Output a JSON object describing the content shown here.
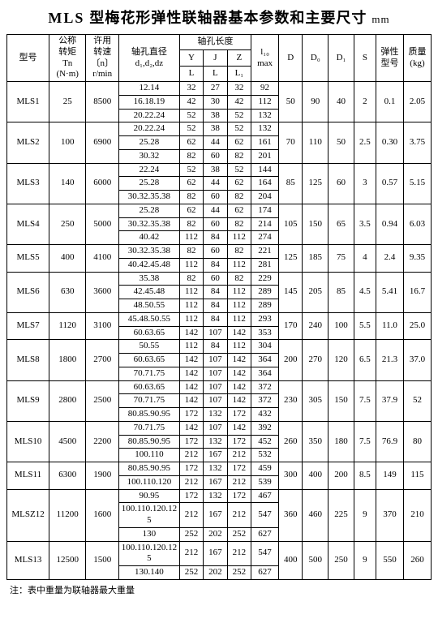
{
  "title": {
    "eng": "MLS",
    "cn": "型梅花形弹性联轴器基本参数和主要尺寸",
    "unit": "mm"
  },
  "headers": {
    "model": "型号",
    "tn": "公称\n转矩\nTn\n(N·m)",
    "rpm": "许用\n转速\n〔n〕\nr/min",
    "d": "轴孔直径\nd₁,d₂,dz",
    "axialLen": "轴孔长度",
    "Y": "Y",
    "J": "J",
    "Z": "Z",
    "L": "L",
    "L1": "L₁",
    "l10": "l₁₀\nmax",
    "D": "D",
    "Do": "D₀",
    "D1": "D₁",
    "S": "S",
    "elastic": "弹性\n型号",
    "kg": "质量\n(kg)"
  },
  "footnote": "注：表中重量为联轴器最大重量",
  "groups": [
    {
      "model": "MLS1",
      "tn": "25",
      "rpm": "8500",
      "D": "50",
      "Do": "90",
      "D1": "40",
      "S": "2",
      "el": "0.1",
      "kg": "2.05",
      "rows": [
        {
          "d": "12.14",
          "Y": "32",
          "J": "27",
          "Z": "32",
          "l10": "92"
        },
        {
          "d": "16.18.19",
          "Y": "42",
          "J": "30",
          "Z": "42",
          "l10": "112"
        },
        {
          "d": "20.22.24",
          "Y": "52",
          "J": "38",
          "Z": "52",
          "l10": "132"
        }
      ]
    },
    {
      "model": "MLS2",
      "tn": "100",
      "rpm": "6900",
      "D": "70",
      "Do": "110",
      "D1": "50",
      "S": "2.5",
      "el": "0.30",
      "kg": "3.75",
      "rows": [
        {
          "d": "20.22.24",
          "Y": "52",
          "J": "38",
          "Z": "52",
          "l10": "132"
        },
        {
          "d": "25.28",
          "Y": "62",
          "J": "44",
          "Z": "62",
          "l10": "161"
        },
        {
          "d": "30.32",
          "Y": "82",
          "J": "60",
          "Z": "82",
          "l10": "201"
        }
      ]
    },
    {
      "model": "MLS3",
      "tn": "140",
      "rpm": "6000",
      "D": "85",
      "Do": "125",
      "D1": "60",
      "S": "3",
      "el": "0.57",
      "kg": "5.15",
      "rows": [
        {
          "d": "22.24",
          "Y": "52",
          "J": "38",
          "Z": "52",
          "l10": "144"
        },
        {
          "d": "25.28",
          "Y": "62",
          "J": "44",
          "Z": "62",
          "l10": "164"
        },
        {
          "d": "30.32.35.38",
          "Y": "82",
          "J": "60",
          "Z": "82",
          "l10": "204"
        }
      ]
    },
    {
      "model": "MLS4",
      "tn": "250",
      "rpm": "5000",
      "D": "105",
      "Do": "150",
      "D1": "65",
      "S": "3.5",
      "el": "0.94",
      "kg": "6.03",
      "rows": [
        {
          "d": "25.28",
          "Y": "62",
          "J": "44",
          "Z": "62",
          "l10": "174"
        },
        {
          "d": "30.32.35.38",
          "Y": "82",
          "J": "60",
          "Z": "82",
          "l10": "214"
        },
        {
          "d": "40.42",
          "Y": "112",
          "J": "84",
          "Z": "112",
          "l10": "274"
        }
      ]
    },
    {
      "model": "MLS5",
      "tn": "400",
      "rpm": "4100",
      "D": "125",
      "Do": "185",
      "D1": "75",
      "S": "4",
      "el": "2.4",
      "kg": "9.35",
      "rows": [
        {
          "d": "30.32.35.38",
          "Y": "82",
          "J": "60",
          "Z": "82",
          "l10": "221"
        },
        {
          "d": "40.42.45.48",
          "Y": "112",
          "J": "84",
          "Z": "112",
          "l10": "281"
        }
      ]
    },
    {
      "model": "MLS6",
      "tn": "630",
      "rpm": "3600",
      "D": "145",
      "Do": "205",
      "D1": "85",
      "S": "4.5",
      "el": "5.41",
      "kg": "16.7",
      "rows": [
        {
          "d": "35.38",
          "Y": "82",
          "J": "60",
          "Z": "82",
          "l10": "229"
        },
        {
          "d": "42.45.48",
          "Y": "112",
          "J": "84",
          "Z": "112",
          "l10": "289"
        },
        {
          "d": "48.50.55",
          "Y": "112",
          "J": "84",
          "Z": "112",
          "l10": "289"
        }
      ]
    },
    {
      "model": "MLS7",
      "tn": "1120",
      "rpm": "3100",
      "D": "170",
      "Do": "240",
      "D1": "100",
      "S": "5.5",
      "el": "11.0",
      "kg": "25.0",
      "rows": [
        {
          "d": "45.48.50.55",
          "Y": "112",
          "J": "84",
          "Z": "112",
          "l10": "293"
        },
        {
          "d": "60.63.65",
          "Y": "142",
          "J": "107",
          "Z": "142",
          "l10": "353"
        }
      ]
    },
    {
      "model": "MLS8",
      "tn": "1800",
      "rpm": "2700",
      "D": "200",
      "Do": "270",
      "D1": "120",
      "S": "6.5",
      "el": "21.3",
      "kg": "37.0",
      "rows": [
        {
          "d": "50.55",
          "Y": "112",
          "J": "84",
          "Z": "112",
          "l10": "304"
        },
        {
          "d": "60.63.65",
          "Y": "142",
          "J": "107",
          "Z": "142",
          "l10": "364"
        },
        {
          "d": "70.71.75",
          "Y": "142",
          "J": "107",
          "Z": "142",
          "l10": "364"
        }
      ]
    },
    {
      "model": "MLS9",
      "tn": "2800",
      "rpm": "2500",
      "D": "230",
      "Do": "305",
      "D1": "150",
      "S": "7.5",
      "el": "37.9",
      "kg": "52",
      "rows": [
        {
          "d": "60.63.65",
          "Y": "142",
          "J": "107",
          "Z": "142",
          "l10": "372"
        },
        {
          "d": "70.71.75",
          "Y": "142",
          "J": "107",
          "Z": "142",
          "l10": "372"
        },
        {
          "d": "80.85.90.95",
          "Y": "172",
          "J": "132",
          "Z": "172",
          "l10": "432"
        }
      ]
    },
    {
      "model": "MLS10",
      "tn": "4500",
      "rpm": "2200",
      "D": "260",
      "Do": "350",
      "D1": "180",
      "S": "7.5",
      "el": "76.9",
      "kg": "80",
      "rows": [
        {
          "d": "70.71.75",
          "Y": "142",
          "J": "107",
          "Z": "142",
          "l10": "392"
        },
        {
          "d": "80.85.90.95",
          "Y": "172",
          "J": "132",
          "Z": "172",
          "l10": "452"
        },
        {
          "d": "100.110",
          "Y": "212",
          "J": "167",
          "Z": "212",
          "l10": "532"
        }
      ]
    },
    {
      "model": "MLS11",
      "tn": "6300",
      "rpm": "1900",
      "D": "300",
      "Do": "400",
      "D1": "200",
      "S": "8.5",
      "el": "149",
      "kg": "115",
      "rows": [
        {
          "d": "80.85.90.95",
          "Y": "172",
          "J": "132",
          "Z": "172",
          "l10": "459"
        },
        {
          "d": "100.110.120",
          "Y": "212",
          "J": "167",
          "Z": "212",
          "l10": "539"
        }
      ]
    },
    {
      "model": "MLSZ12",
      "tn": "11200",
      "rpm": "1600",
      "D": "360",
      "Do": "460",
      "D1": "225",
      "S": "9",
      "el": "370",
      "kg": "210",
      "rows": [
        {
          "d": "90.95",
          "Y": "172",
          "J": "132",
          "Z": "172",
          "l10": "467"
        },
        {
          "d": "100.110.120.125",
          "Y": "212",
          "J": "167",
          "Z": "212",
          "l10": "547"
        },
        {
          "d": "130",
          "Y": "252",
          "J": "202",
          "Z": "252",
          "l10": "627"
        }
      ]
    },
    {
      "model": "MLS13",
      "tn": "12500",
      "rpm": "1500",
      "D": "400",
      "Do": "500",
      "D1": "250",
      "S": "9",
      "el": "550",
      "kg": "260",
      "rows": [
        {
          "d": "100.110.120.125",
          "Y": "212",
          "J": "167",
          "Z": "212",
          "l10": "547"
        },
        {
          "d": "130.140",
          "Y": "252",
          "J": "202",
          "Z": "252",
          "l10": "627"
        }
      ]
    }
  ]
}
